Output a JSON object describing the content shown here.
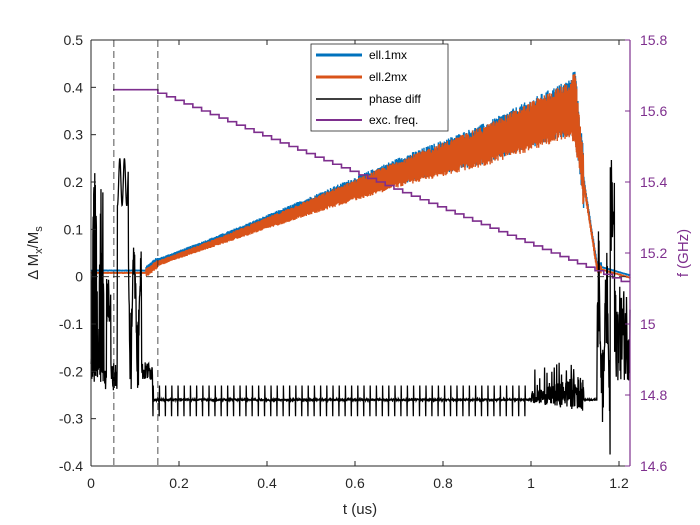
{
  "chart_data": {
    "type": "line",
    "xlabel": "t (us)",
    "ylabel_parts": [
      "Δ M",
      "x",
      "/M",
      "s"
    ],
    "ylabel_right": "f (GHz)",
    "xlim": [
      0,
      1.225
    ],
    "ylim": [
      -0.4,
      0.5
    ],
    "ylim_right": [
      14.6,
      15.8
    ],
    "x_ticks": [
      0,
      0.2,
      0.4,
      0.6,
      0.8,
      1,
      1.2
    ],
    "x_tick_labels": [
      "0",
      "0.2",
      "0.4",
      "0.6",
      "0.8",
      "1",
      "1.2"
    ],
    "y_ticks": [
      -0.4,
      -0.3,
      -0.2,
      -0.1,
      0,
      0.1,
      0.2,
      0.3,
      0.4,
      0.5
    ],
    "y_tick_labels": [
      "-0.4",
      "-0.3",
      "-0.2",
      "-0.1",
      "0",
      "0.1",
      "0.2",
      "0.3",
      "0.4",
      "0.5"
    ],
    "y_ticks_right": [
      14.6,
      14.8,
      15,
      15.2,
      15.4,
      15.6,
      15.8
    ],
    "y_tick_labels_right": [
      "14.6",
      "14.8",
      "15",
      "15.2",
      "15.4",
      "15.6",
      "15.8"
    ],
    "reference_lines": {
      "horizontal_y": 0,
      "vertical_x": [
        0.052,
        0.152
      ]
    },
    "legend_position": "top-center",
    "series": [
      {
        "name": "ell.1mx",
        "color": "#0072BD",
        "axis": "left",
        "envelope": {
          "x": [
            0,
            0.125,
            0.152,
            0.3,
            0.5,
            0.7,
            0.9,
            1.0,
            1.05,
            1.1,
            1.12,
            1.15,
            1.225
          ],
          "y": [
            0.01,
            0.01,
            0.03,
            0.08,
            0.15,
            0.22,
            0.28,
            0.32,
            0.34,
            0.36,
            0.2,
            0.02,
            0.0
          ]
        }
      },
      {
        "name": "ell.2mx",
        "color": "#D95319",
        "axis": "left",
        "envelope": {
          "x": [
            0,
            0.125,
            0.152,
            0.3,
            0.5,
            0.7,
            0.9,
            1.0,
            1.05,
            1.1,
            1.12,
            1.15,
            1.225
          ],
          "y": [
            0.01,
            0.01,
            0.03,
            0.08,
            0.15,
            0.22,
            0.28,
            0.32,
            0.34,
            0.36,
            0.2,
            0.02,
            0.0
          ]
        }
      },
      {
        "name": "phase diff",
        "color": "#000000",
        "axis": "left",
        "baseline": -0.26
      },
      {
        "name": "exc. freq.",
        "color": "#7E2F8E",
        "axis": "right",
        "steps": {
          "x_start": 0.152,
          "x_end": 1.225,
          "f_start": 15.66,
          "f_end": 15.12
        },
        "x": [
          0.05,
          0.152
        ],
        "f": [
          15.66,
          15.66
        ]
      }
    ]
  }
}
